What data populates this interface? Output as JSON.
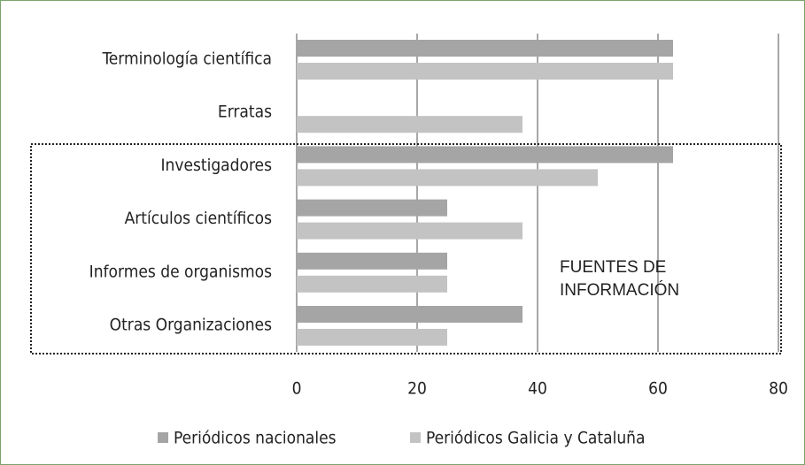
{
  "chart_data": {
    "type": "hbar",
    "categories": [
      "Terminología científica",
      "Erratas",
      "Investigadores",
      "Artículos científicos",
      "Informes de organismos",
      "Otras Organizaciones"
    ],
    "series": [
      {
        "name": "Periódicos nacionales",
        "color": "#a5a5a5",
        "values": [
          62.5,
          0,
          62.5,
          25,
          25,
          37.5
        ]
      },
      {
        "name": "Periódicos Galicia y Cataluña",
        "color": "#c3c3c3",
        "values": [
          62.5,
          37.5,
          50,
          37.5,
          25,
          25
        ]
      }
    ],
    "xlim": [
      0,
      80
    ],
    "xticks": [
      0,
      20,
      40,
      60,
      80
    ],
    "grid": true,
    "annotation": "FUENTES DE INFORMACIÓN"
  }
}
